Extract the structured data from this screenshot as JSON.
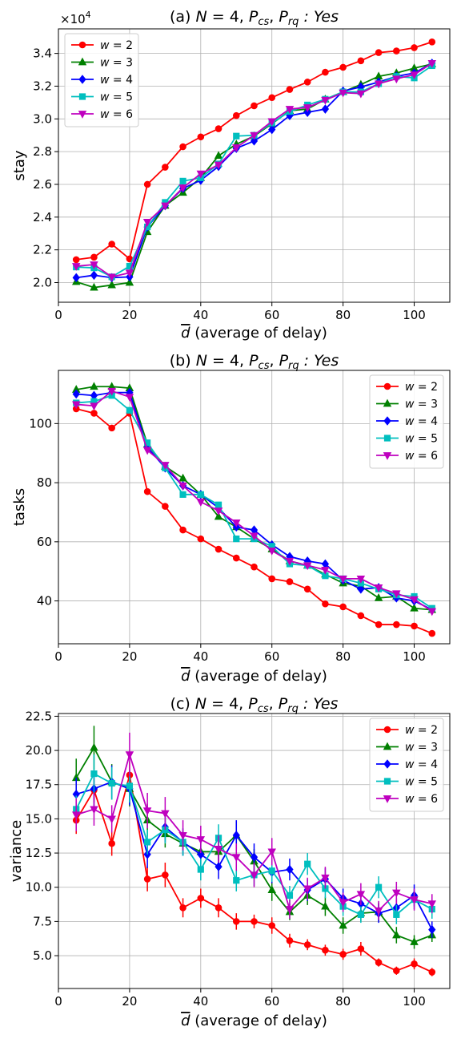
{
  "colors": {
    "w2": "#ff0000",
    "w3": "#008000",
    "w4": "#0000ff",
    "w5": "#00bfbf",
    "w6": "#bf00bf"
  },
  "chart_data": [
    {
      "type": "line",
      "title": "(a) N = 4, Pcs, Prq : Yes",
      "title_parts": [
        "(a) ",
        "N",
        " = 4, ",
        "P",
        "cs",
        ", ",
        "P",
        "rq",
        " : Yes"
      ],
      "xlabel": "d (average of delay)",
      "xlabel_symbol": "d",
      "xlabel_rest": " (average of delay)",
      "ylabel": "stay",
      "offset_text": "×10",
      "offset_exp": "4",
      "xlim": [
        0,
        110
      ],
      "ylim": [
        1.88,
        3.55
      ],
      "xticks": [
        "0",
        "20",
        "40",
        "60",
        "80",
        "100"
      ],
      "xtick_values": [
        0,
        20,
        40,
        60,
        80,
        100
      ],
      "yticks": [
        "2.0",
        "2.2",
        "2.4",
        "2.6",
        "2.8",
        "3.0",
        "3.2",
        "3.4"
      ],
      "ytick_values": [
        2.0,
        2.2,
        2.4,
        2.6,
        2.8,
        3.0,
        3.2,
        3.4
      ],
      "legend_position": "top-left",
      "grid": true,
      "x": [
        5,
        10,
        15,
        20,
        25,
        30,
        35,
        40,
        45,
        50,
        55,
        60,
        65,
        70,
        75,
        80,
        85,
        90,
        95,
        100,
        105
      ],
      "series": [
        {
          "name": "w = 2",
          "var": "w",
          "val": "2",
          "color": "#ff0000",
          "marker": "circle",
          "values": [
            2.14,
            2.155,
            2.235,
            2.145,
            2.6,
            2.705,
            2.83,
            2.89,
            2.94,
            3.02,
            3.08,
            3.13,
            3.18,
            3.225,
            3.285,
            3.315,
            3.355,
            3.405,
            3.415,
            3.435,
            3.47
          ]
        },
        {
          "name": "w = 3",
          "var": "w",
          "val": "3",
          "color": "#008000",
          "marker": "triangle-up",
          "values": [
            2.005,
            1.97,
            1.985,
            2.0,
            2.31,
            2.47,
            2.55,
            2.64,
            2.775,
            2.845,
            2.895,
            2.97,
            3.05,
            3.06,
            3.12,
            3.165,
            3.21,
            3.26,
            3.28,
            3.31,
            3.335
          ]
        },
        {
          "name": "w = 4",
          "var": "w",
          "val": "4",
          "color": "#0000ff",
          "marker": "diamond",
          "values": [
            2.03,
            2.045,
            2.03,
            2.035,
            2.34,
            2.47,
            2.575,
            2.625,
            2.71,
            2.82,
            2.865,
            2.935,
            3.02,
            3.04,
            3.06,
            3.17,
            3.195,
            3.225,
            3.26,
            3.28,
            3.34
          ]
        },
        {
          "name": "w = 5",
          "var": "w",
          "val": "5",
          "color": "#00bfbf",
          "marker": "square",
          "values": [
            2.095,
            2.09,
            2.035,
            2.1,
            2.34,
            2.49,
            2.62,
            2.64,
            2.725,
            2.895,
            2.9,
            2.975,
            3.045,
            3.085,
            3.12,
            3.165,
            3.165,
            3.215,
            3.26,
            3.25,
            3.325
          ]
        },
        {
          "name": "w = 6",
          "var": "w",
          "val": "6",
          "color": "#bf00bf",
          "marker": "triangle-down",
          "values": [
            2.1,
            2.11,
            2.035,
            2.06,
            2.37,
            2.47,
            2.58,
            2.665,
            2.72,
            2.825,
            2.9,
            2.985,
            3.06,
            3.07,
            3.115,
            3.16,
            3.155,
            3.215,
            3.245,
            3.27,
            3.34
          ]
        }
      ]
    },
    {
      "type": "line",
      "title": "(b) N = 4, Pcs, Prq : Yes",
      "title_parts": [
        "(b) ",
        "N",
        " = 4, ",
        "P",
        "cs",
        ", ",
        "P",
        "rq",
        " : Yes"
      ],
      "xlabel": "d (average of delay)",
      "xlabel_symbol": "d",
      "xlabel_rest": " (average of delay)",
      "ylabel": "tasks",
      "xlim": [
        0,
        110
      ],
      "ylim": [
        25.5,
        118
      ],
      "xticks": [
        "0",
        "20",
        "40",
        "60",
        "80",
        "100"
      ],
      "xtick_values": [
        0,
        20,
        40,
        60,
        80,
        100
      ],
      "yticks": [
        "40",
        "60",
        "80",
        "100"
      ],
      "ytick_values": [
        40,
        60,
        80,
        100
      ],
      "legend_position": "top-right",
      "grid": true,
      "x": [
        5,
        10,
        15,
        20,
        25,
        30,
        35,
        40,
        45,
        50,
        55,
        60,
        65,
        70,
        75,
        80,
        85,
        90,
        95,
        100,
        105
      ],
      "series": [
        {
          "name": "w = 2",
          "var": "w",
          "val": "2",
          "color": "#ff0000",
          "marker": "circle",
          "values": [
            105,
            103.5,
            98.5,
            103.5,
            77,
            72,
            64,
            61,
            57.5,
            54.5,
            51.5,
            47.5,
            46.5,
            44,
            39,
            38,
            35,
            32,
            32,
            31.5,
            29
          ]
        },
        {
          "name": "w = 3",
          "var": "w",
          "val": "3",
          "color": "#008000",
          "marker": "triangle-up",
          "values": [
            111.5,
            112.5,
            112.5,
            112,
            93,
            85.5,
            81.5,
            76,
            68.5,
            65,
            61,
            57.5,
            53.5,
            52,
            49,
            46,
            45,
            41,
            41.5,
            37.5,
            37
          ]
        },
        {
          "name": "w = 4",
          "var": "w",
          "val": "4",
          "color": "#0000ff",
          "marker": "diamond",
          "values": [
            110,
            109.5,
            110.5,
            110.5,
            92,
            85,
            79,
            76,
            71.5,
            65,
            64,
            59,
            55,
            53.5,
            52.5,
            47,
            44,
            44.5,
            41,
            40,
            37
          ]
        },
        {
          "name": "w = 5",
          "var": "w",
          "val": "5",
          "color": "#00bfbf",
          "marker": "square",
          "values": [
            107,
            107.5,
            109.5,
            104.5,
            93.5,
            85,
            76,
            76,
            72.5,
            61,
            61,
            58.5,
            52.5,
            52,
            48.5,
            47.5,
            46,
            44,
            42,
            41.5,
            37.5
          ]
        },
        {
          "name": "w = 6",
          "var": "w",
          "val": "6",
          "color": "#bf00bf",
          "marker": "triangle-down",
          "values": [
            106.5,
            106,
            111,
            109,
            91,
            86,
            79,
            73.5,
            70.5,
            66.5,
            62,
            57,
            53.5,
            52,
            50.5,
            47.5,
            47.5,
            44.5,
            42.5,
            40.5,
            36.5
          ]
        }
      ]
    },
    {
      "type": "line",
      "title": "(c) N = 4, Pcs, Prq : Yes",
      "title_parts": [
        "(c) ",
        "N",
        " = 4, ",
        "P",
        "cs",
        ", ",
        "P",
        "rq",
        " : Yes"
      ],
      "xlabel": "d (average of delay)",
      "xlabel_symbol": "d",
      "xlabel_rest": " (average of delay)",
      "ylabel": "variance",
      "xlim": [
        0,
        110
      ],
      "ylim": [
        2.6,
        22.7
      ],
      "xticks": [
        "0",
        "20",
        "40",
        "60",
        "80",
        "100"
      ],
      "xtick_values": [
        0,
        20,
        40,
        60,
        80,
        100
      ],
      "yticks": [
        "5.0",
        "7.5",
        "10.0",
        "12.5",
        "15.0",
        "17.5",
        "20.0",
        "22.5"
      ],
      "ytick_values": [
        5.0,
        7.5,
        10.0,
        12.5,
        15.0,
        17.5,
        20.0,
        22.5
      ],
      "legend_position": "top-right",
      "grid": true,
      "error_bars": true,
      "x": [
        5,
        10,
        15,
        20,
        25,
        30,
        35,
        40,
        45,
        50,
        55,
        60,
        65,
        70,
        75,
        80,
        85,
        90,
        95,
        100,
        105
      ],
      "series": [
        {
          "name": "w = 2",
          "var": "w",
          "val": "2",
          "color": "#ff0000",
          "marker": "circle",
          "values": [
            14.9,
            17.1,
            13.2,
            18.2,
            10.6,
            10.9,
            8.5,
            9.2,
            8.5,
            7.5,
            7.5,
            7.2,
            6.1,
            5.8,
            5.4,
            5.1,
            5.5,
            4.5,
            3.9,
            4.4,
            3.8
          ],
          "errors": [
            1.0,
            0.9,
            0.9,
            1.0,
            0.9,
            0.9,
            0.7,
            0.7,
            0.7,
            0.6,
            0.5,
            0.6,
            0.5,
            0.4,
            0.4,
            0.4,
            0.5,
            0.3,
            0.3,
            0.4,
            0.3
          ]
        },
        {
          "name": "w = 3",
          "var": "w",
          "val": "3",
          "color": "#008000",
          "marker": "triangle-up",
          "values": [
            18.0,
            20.2,
            17.7,
            17.2,
            14.9,
            13.9,
            13.2,
            12.6,
            12.6,
            13.8,
            11.9,
            9.8,
            8.2,
            9.4,
            8.6,
            7.2,
            8.1,
            8.2,
            6.5,
            6.0,
            6.5
          ],
          "errors": [
            1.4,
            1.6,
            1.3,
            1.3,
            1.2,
            1.0,
            0.9,
            0.9,
            1.0,
            1.0,
            0.9,
            0.8,
            0.6,
            0.7,
            0.7,
            0.6,
            0.6,
            0.7,
            0.6,
            0.5,
            0.5
          ]
        },
        {
          "name": "w = 4",
          "var": "w",
          "val": "4",
          "color": "#0000ff",
          "marker": "diamond",
          "values": [
            16.8,
            17.2,
            17.7,
            17.2,
            12.4,
            14.4,
            13.3,
            12.4,
            11.5,
            13.8,
            12.2,
            11.1,
            11.3,
            9.8,
            10.6,
            9.2,
            8.8,
            8.1,
            8.5,
            9.4,
            6.9
          ],
          "errors": [
            1.2,
            1.3,
            1.2,
            1.2,
            1.0,
            1.1,
            1.0,
            1.0,
            0.9,
            1.1,
            1.0,
            0.8,
            0.8,
            0.8,
            0.8,
            0.7,
            0.7,
            0.7,
            0.7,
            0.8,
            0.6
          ]
        },
        {
          "name": "w = 5",
          "var": "w",
          "val": "5",
          "color": "#00bfbf",
          "marker": "square",
          "values": [
            15.7,
            18.3,
            17.6,
            17.4,
            13.3,
            14.2,
            13.3,
            11.3,
            13.6,
            10.5,
            10.9,
            11.2,
            9.4,
            11.7,
            9.9,
            8.6,
            8.0,
            10.0,
            8.0,
            9.1,
            8.4
          ],
          "errors": [
            1.0,
            1.4,
            1.2,
            1.2,
            0.9,
            1.0,
            1.0,
            0.8,
            1.0,
            0.8,
            0.8,
            0.8,
            0.7,
            0.8,
            0.7,
            0.7,
            0.6,
            0.8,
            0.7,
            0.7,
            0.7
          ]
        },
        {
          "name": "w = 6",
          "var": "w",
          "val": "6",
          "color": "#bf00bf",
          "marker": "triangle-down",
          "values": [
            15.3,
            15.7,
            15.0,
            19.7,
            15.6,
            15.4,
            13.8,
            13.5,
            12.8,
            12.2,
            10.9,
            12.6,
            8.4,
            9.9,
            10.7,
            8.9,
            9.5,
            8.3,
            9.6,
            9.1,
            8.8
          ],
          "errors": [
            1.2,
            1.2,
            1.0,
            1.6,
            1.3,
            1.2,
            1.1,
            1.0,
            1.0,
            1.0,
            0.9,
            1.0,
            0.7,
            0.8,
            0.8,
            0.7,
            0.8,
            0.7,
            0.8,
            0.8,
            0.7
          ]
        }
      ]
    }
  ]
}
